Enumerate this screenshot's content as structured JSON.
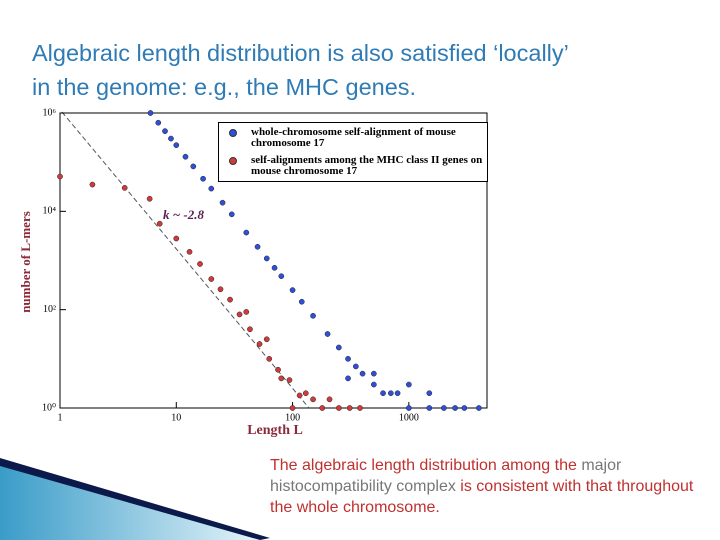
{
  "title_lines": [
    "Algebraic length distribution is also satisfied ‘locally’",
    "in the genome: e.g., the MHC genes."
  ],
  "caption": [
    "The algebraic length distribution among the ",
    "major histocompatibility complex",
    " is consistent with that throughout the whole chromosome."
  ],
  "chart_data": {
    "type": "scatter",
    "xlabel": "Length L",
    "ylabel": "number of L-mers",
    "annotation": "k ~ -2.8",
    "xscale": "log",
    "yscale": "log",
    "xlim": [
      1,
      4700
    ],
    "ylim": [
      1,
      1000000
    ],
    "xticks": [
      1,
      10,
      100,
      1000
    ],
    "yticks": [
      {
        "value": 1,
        "label": "10⁰"
      },
      {
        "value": 100,
        "label": "10²"
      },
      {
        "value": 10000,
        "label": "10⁴"
      },
      {
        "value": 1000000,
        "label": "10⁶"
      }
    ],
    "series": [
      {
        "name": "whole-chromosome self-alignment of mouse chromosome 17",
        "color": "#2f4fd8",
        "x": [
          6,
          7,
          8,
          9,
          10,
          12,
          14,
          17,
          20,
          25,
          30,
          40,
          50,
          60,
          70,
          80,
          100,
          120,
          150,
          200,
          250,
          300,
          350,
          400,
          500,
          600,
          800,
          1000,
          1500,
          2000,
          3000,
          4000,
          300,
          500,
          700,
          1000,
          1500,
          2500
        ],
        "values": [
          1000000,
          634000,
          428000,
          302000,
          222000,
          129000,
          82000,
          46000,
          29000,
          15000,
          8700,
          3700,
          1900,
          1100,
          710,
          480,
          250,
          145,
          75,
          32,
          17,
          10,
          7,
          5,
          3,
          2,
          2,
          1,
          1,
          1,
          1,
          1,
          4,
          5,
          2,
          3,
          2,
          1
        ]
      },
      {
        "name": "self-alignments among the MHC class II genes on mouse chromosome 17",
        "color": "#d03a3a",
        "x": [
          1,
          1.9,
          3.6,
          5.9,
          7.2,
          10,
          13,
          16,
          20,
          24,
          29,
          35,
          43,
          52,
          63,
          75,
          94,
          115,
          150,
          208,
          310,
          380,
          40,
          60,
          80,
          100,
          130,
          180,
          250
        ],
        "values": [
          51000,
          35000,
          30000,
          18000,
          5600,
          2800,
          1500,
          850,
          420,
          260,
          160,
          80,
          40,
          20,
          10,
          6,
          3.7,
          1.8,
          1.5,
          1.5,
          1,
          1,
          90,
          25,
          4,
          1,
          2,
          1,
          1
        ]
      }
    ]
  }
}
